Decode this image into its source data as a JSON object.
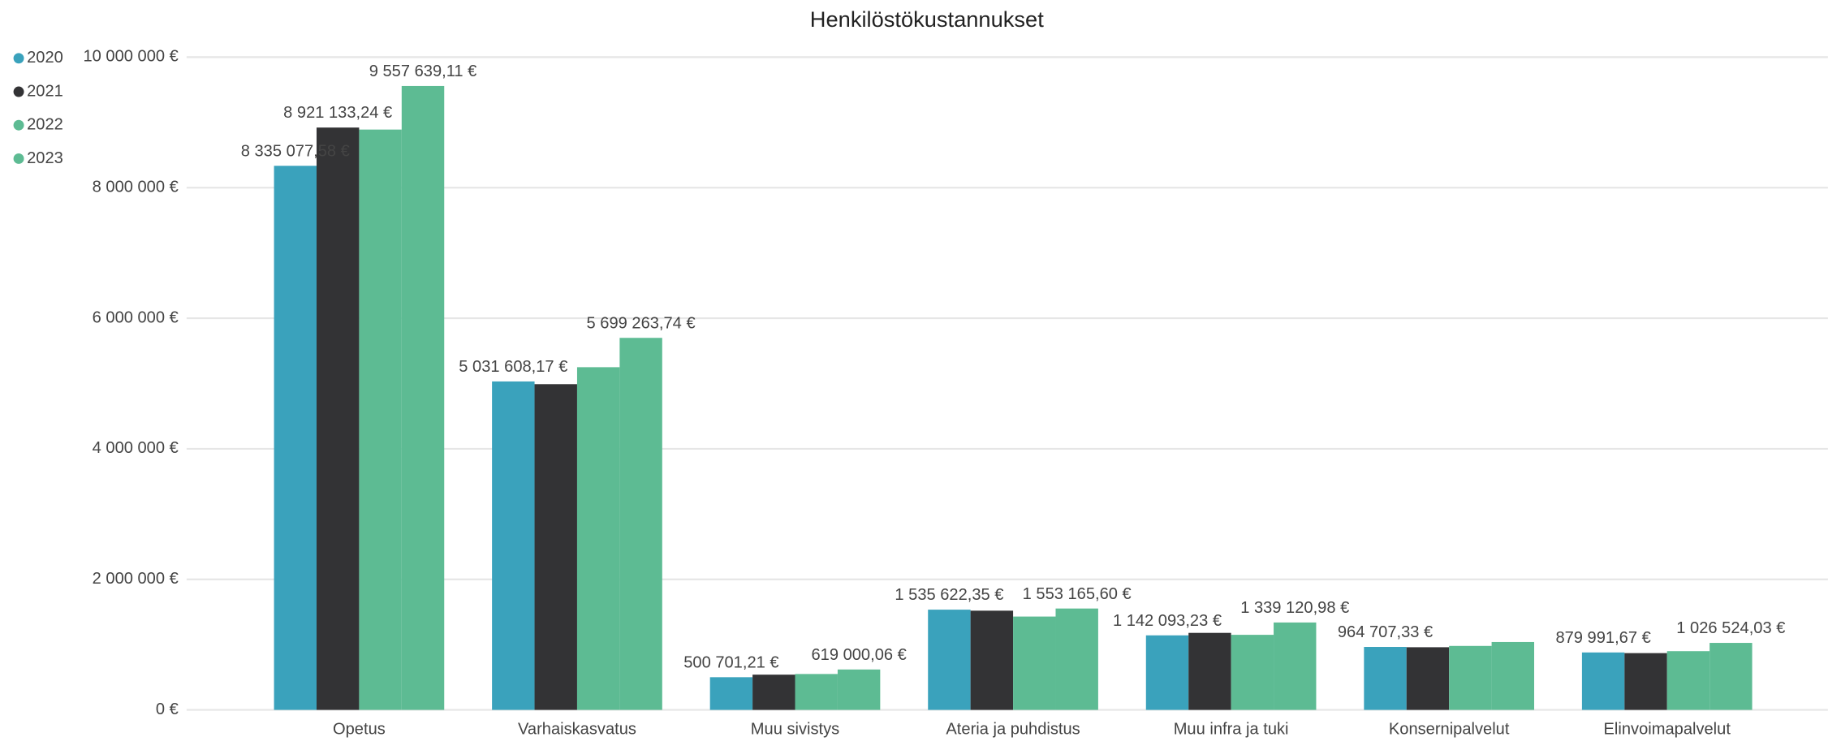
{
  "chart_data": {
    "type": "bar",
    "title": "Henkilöstökustannukset",
    "categories": [
      "Opetus",
      "Varhaiskasvatus",
      "Muu sivistys",
      "Ateria ja puhdistus",
      "Muu infra ja tuki",
      "Konsernipalvelut",
      "Elinvoimapalvelut"
    ],
    "series": [
      {
        "name": "2020",
        "color": "#3aa2bc",
        "values": [
          8335077.58,
          5031608.17,
          500701.21,
          1535622.35,
          1142093.23,
          964707.33,
          879991.67
        ],
        "value_labels": [
          "8 335 077,58 €",
          "5 031 608,17 €",
          "500 701,21 €",
          "1 535 622,35 €",
          "1 142 093,23 €",
          "964 707,33 €",
          "879 991,67 €"
        ]
      },
      {
        "name": "2021",
        "color": "#333335",
        "values": [
          8921133.24,
          4990000,
          540000,
          1520000,
          1180000,
          960000,
          870000
        ],
        "value_labels": [
          "8 921 133,24 €",
          null,
          null,
          null,
          null,
          null,
          null
        ]
      },
      {
        "name": "2022",
        "color": "#5dbb93",
        "values": [
          8890000,
          5250000,
          550000,
          1430000,
          1150000,
          980000,
          900000
        ],
        "value_labels": [
          null,
          null,
          null,
          null,
          null,
          null,
          null
        ]
      },
      {
        "name": "2023",
        "color": "#5dbb93",
        "values": [
          9557639.11,
          5699263.74,
          619000.06,
          1553165.6,
          1339120.98,
          1040000,
          1026524.03
        ],
        "value_labels": [
          "9 557 639,11 €",
          "5 699 263,74 €",
          "619 000,06 €",
          "1 553 165,60 €",
          "1 339 120,98 €",
          null,
          "1 026 524,03 €"
        ]
      }
    ],
    "ylim": [
      0,
      10000000
    ],
    "yticks": [
      {
        "value": 0,
        "label": "0 €"
      },
      {
        "value": 2000000,
        "label": "2 000 000 €"
      },
      {
        "value": 4000000,
        "label": "4 000 000 €"
      },
      {
        "value": 6000000,
        "label": "6 000 000 €"
      },
      {
        "value": 8000000,
        "label": "8 000 000 €"
      },
      {
        "value": 10000000,
        "label": "10 000 000 €"
      }
    ],
    "grid": true,
    "legend": "top-left"
  }
}
